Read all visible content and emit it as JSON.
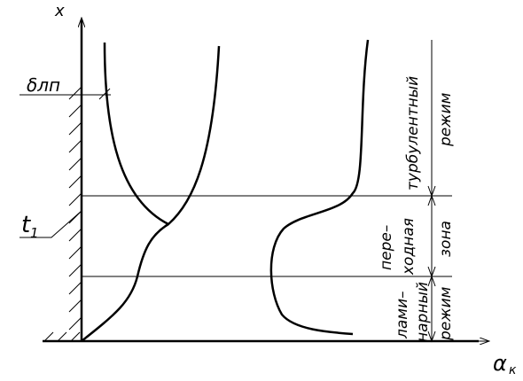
{
  "axes": {
    "y_label": "x",
    "x_label": "α",
    "x_label_subscript": "к"
  },
  "markers": {
    "delta": "δлп",
    "t": "t",
    "t_subscript": "1"
  },
  "zones": {
    "turbulent": [
      "турбулентный",
      "режим"
    ],
    "transition": [
      "пере–",
      "ходная",
      "зона"
    ],
    "laminar": [
      "лами–",
      "нарный",
      "режим"
    ]
  }
}
